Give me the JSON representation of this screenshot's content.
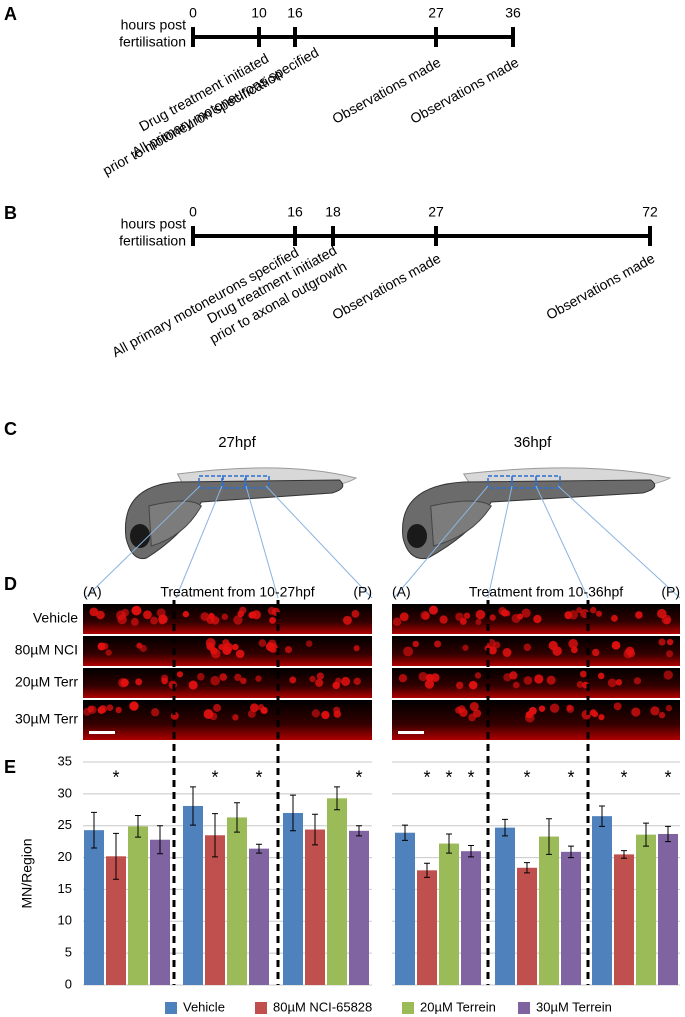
{
  "timeline_a": {
    "label": "A",
    "axis_label": [
      "hours post",
      "fertilisation"
    ],
    "ticks": [
      0,
      10,
      16,
      27,
      36
    ],
    "events": [
      [
        "Drug treatment initiated",
        "prior to motoneuron specification"
      ],
      [
        "All primary motoneurons specified"
      ],
      [
        "Observations made"
      ],
      [
        "Observations made"
      ]
    ]
  },
  "timeline_b": {
    "label": "B",
    "axis_label": [
      "hours post",
      "fertilisation"
    ],
    "ticks": [
      0,
      16,
      18,
      27,
      72
    ],
    "events": [
      [
        "All primary motoneurons specified"
      ],
      [
        "Drug treatment initiated",
        "prior to axonal outgrowth"
      ],
      [
        "Observations made"
      ],
      [
        "Observations made"
      ]
    ]
  },
  "panel_c": {
    "label": "C",
    "stages": [
      "27hpf",
      "36hpf"
    ]
  },
  "panel_d": {
    "label": "D",
    "headers": [
      {
        "anterior": "(A)",
        "title": "Treatment from 10-27hpf",
        "posterior": "(P)"
      },
      {
        "anterior": "(A)",
        "title": "Treatment from 10-36hpf",
        "posterior": "(P)"
      }
    ],
    "rows": [
      "Vehicle",
      "80µM NCI",
      "20µM Terr",
      "30µM Terr"
    ]
  },
  "chart_data": {
    "type": "bar",
    "label": "E",
    "y_label": "MN/Region",
    "categories": [
      null,
      null,
      null,
      null,
      null,
      null
    ],
    "ylim": [
      0,
      35
    ],
    "yticks": [
      0,
      5,
      10,
      15,
      20,
      25,
      30,
      35
    ],
    "grid": true,
    "series": [
      {
        "name": "Vehicle",
        "color": "#4f81bd",
        "values": [
          24.3,
          28.1,
          27.0,
          23.9,
          24.7,
          26.5
        ],
        "errors": [
          2.8,
          3.0,
          2.8,
          1.2,
          1.3,
          1.6
        ],
        "stars": [
          null,
          null,
          null,
          null,
          null,
          null
        ]
      },
      {
        "name": "80µM NCI-65828",
        "color": "#c0504d",
        "values": [
          20.2,
          23.5,
          24.4,
          18.0,
          18.4,
          20.5
        ],
        "errors": [
          3.6,
          3.4,
          2.4,
          1.1,
          0.8,
          0.6
        ],
        "stars": [
          "*",
          "*",
          null,
          "*",
          "*",
          "*"
        ]
      },
      {
        "name": "20µM Terrein",
        "color": "#9bbb59",
        "values": [
          24.9,
          26.3,
          29.3,
          22.2,
          23.3,
          23.6
        ],
        "errors": [
          1.7,
          2.3,
          1.8,
          1.5,
          2.8,
          1.8
        ],
        "stars": [
          null,
          null,
          null,
          "*",
          null,
          null
        ]
      },
      {
        "name": "30µM Terrein",
        "color": "#8064a2",
        "values": [
          22.8,
          21.4,
          24.2,
          21.0,
          20.9,
          23.7
        ],
        "errors": [
          2.2,
          0.7,
          0.8,
          0.9,
          0.9,
          1.2
        ],
        "stars": [
          null,
          "*",
          "*",
          "*",
          "*",
          "*"
        ]
      }
    ]
  }
}
